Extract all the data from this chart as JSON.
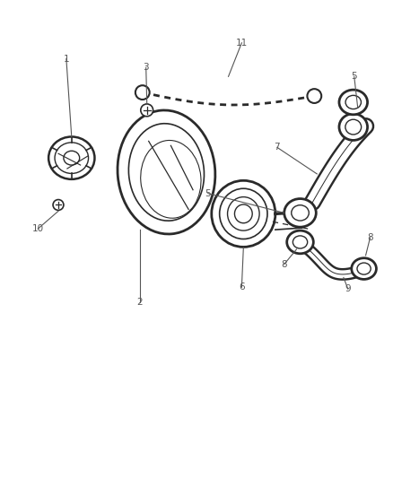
{
  "bg_color": "#ffffff",
  "line_color": "#2a2a2a",
  "label_color": "#555555",
  "fig_width": 4.38,
  "fig_height": 5.33,
  "dpi": 100
}
